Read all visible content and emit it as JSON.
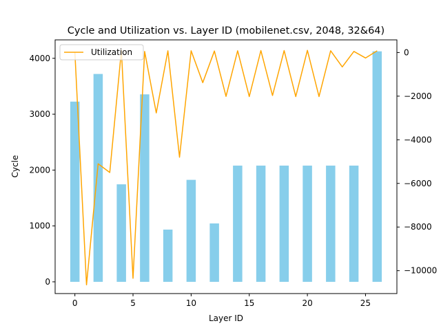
{
  "chart_data": {
    "type": "bar+line",
    "title": "Cycle and Utilization vs. Layer ID (mobilenet.csv, 2048, 32&64)",
    "xlabel": "Layer ID",
    "ylabel": "Cycle",
    "y2label": "",
    "xlim": [
      -1.7,
      27.7
    ],
    "ylim": [
      -210,
      4330
    ],
    "y2lim": [
      -11050,
      580
    ],
    "xticks": [
      0,
      5,
      10,
      15,
      20,
      25
    ],
    "yticks": [
      0,
      1000,
      2000,
      3000,
      4000
    ],
    "y2ticks": [
      -10000,
      -8000,
      -6000,
      -4000,
      -2000,
      0
    ],
    "bar_color": "#87ceeb",
    "line_color": "#ffa500",
    "bar_width": 0.8,
    "bars": {
      "name": "Cycle",
      "x": [
        0,
        2,
        4,
        6,
        8,
        10,
        12,
        14,
        16,
        18,
        20,
        22,
        24,
        26
      ],
      "values": [
        3225,
        3720,
        1745,
        3355,
        935,
        1825,
        1045,
        2080,
        2080,
        2080,
        2080,
        2080,
        2080,
        4125
      ]
    },
    "line": {
      "name": "Utilization",
      "x": [
        0,
        1,
        2,
        3,
        4,
        5,
        6,
        7,
        8,
        9,
        10,
        11,
        12,
        13,
        14,
        15,
        16,
        17,
        18,
        19,
        20,
        21,
        22,
        23,
        24,
        25,
        26
      ],
      "values": [
        0,
        -10650,
        -5100,
        -5500,
        100,
        -10350,
        50,
        -2770,
        80,
        -4800,
        80,
        -1380,
        70,
        -2010,
        80,
        -2020,
        90,
        -1970,
        90,
        -2020,
        100,
        -2020,
        80,
        -660,
        50,
        -250,
        80
      ]
    },
    "legend": {
      "entries": [
        "Utilization"
      ],
      "position": "upper-left"
    },
    "grid": false
  }
}
